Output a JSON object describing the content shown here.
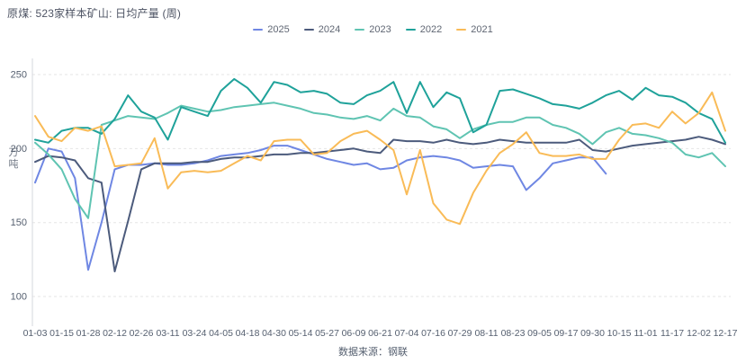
{
  "header": {
    "title": "原煤: 523家样本矿山: 日均产量 (周)"
  },
  "footer": {
    "source": "数据来源：钢联"
  },
  "theme": {
    "title_color": "#4e5464",
    "axis_text_color": "#566070",
    "grid_color": "#e6e6e6",
    "axis_line_color": "#d4d7dc",
    "background": "#ffffff"
  },
  "chart_data": {
    "type": "line",
    "title": "原煤: 523家样本矿山: 日均产量 (周)",
    "xlabel": "",
    "ylabel": "万吨",
    "ylim": [
      100,
      258
    ],
    "yticks": [
      100,
      150,
      200,
      250
    ],
    "grid": "horizontal-dashed",
    "legend_position": "top-center",
    "x_label_every": 2,
    "categories": [
      "01-03",
      "01-09",
      "01-15",
      "01-22",
      "01-28",
      "02-05",
      "02-12",
      "02-19",
      "02-26",
      "03-04",
      "03-11",
      "03-17",
      "03-24",
      "03-30",
      "04-05",
      "04-12",
      "04-18",
      "04-24",
      "04-30",
      "05-07",
      "05-14",
      "05-20",
      "05-27",
      "06-02",
      "06-09",
      "06-15",
      "06-21",
      "06-27",
      "07-04",
      "07-10",
      "07-16",
      "07-22",
      "07-29",
      "08-05",
      "08-11",
      "08-17",
      "08-23",
      "08-29",
      "09-05",
      "09-11",
      "09-17",
      "09-24",
      "09-30",
      "10-08",
      "10-15",
      "10-24",
      "11-01",
      "11-09",
      "11-17",
      "11-25",
      "12-02",
      "12-10",
      "12-17"
    ],
    "series": [
      {
        "name": "2025",
        "color": "#6f87e3",
        "values": [
          177,
          200,
          198,
          180,
          118,
          150,
          186,
          189,
          189,
          190,
          189,
          189,
          190,
          192,
          195,
          196,
          197,
          199,
          202,
          202,
          199,
          196,
          193,
          191,
          189,
          190,
          186,
          187,
          192,
          194,
          195,
          194,
          192,
          187,
          188,
          189,
          188,
          172,
          180,
          190,
          192,
          194,
          194,
          183,
          null,
          null,
          null,
          null,
          null,
          null,
          null,
          null,
          null
        ]
      },
      {
        "name": "2024",
        "color": "#4c5b7c",
        "values": [
          191,
          195,
          194,
          192,
          180,
          177,
          117,
          151,
          186,
          190,
          190,
          190,
          191,
          191,
          193,
          194,
          194,
          195,
          196,
          196,
          197,
          197,
          198,
          199,
          200,
          198,
          197,
          206,
          205,
          205,
          204,
          206,
          204,
          203,
          204,
          206,
          205,
          204,
          204,
          204,
          204,
          206,
          199,
          198,
          200,
          202,
          203,
          204,
          205,
          206,
          208,
          206,
          203
        ]
      },
      {
        "name": "2023",
        "color": "#5fc4b2",
        "values": [
          204,
          196,
          186,
          166,
          153,
          216,
          219,
          222,
          221,
          220,
          224,
          229,
          227,
          225,
          226,
          228,
          229,
          230,
          231,
          229,
          227,
          224,
          223,
          221,
          220,
          222,
          219,
          227,
          222,
          221,
          215,
          213,
          207,
          213,
          216,
          218,
          218,
          221,
          221,
          216,
          214,
          210,
          203,
          211,
          214,
          210,
          209,
          207,
          204,
          196,
          194,
          197,
          188
        ]
      },
      {
        "name": "2022",
        "color": "#1fa29a",
        "values": [
          206,
          204,
          212,
          214,
          214,
          210,
          220,
          236,
          225,
          221,
          206,
          228,
          225,
          222,
          239,
          247,
          241,
          231,
          245,
          243,
          238,
          239,
          237,
          231,
          230,
          236,
          239,
          245,
          224,
          245,
          228,
          238,
          234,
          211,
          216,
          239,
          240,
          237,
          234,
          230,
          229,
          227,
          231,
          236,
          239,
          233,
          241,
          236,
          235,
          231,
          224,
          220,
          204
        ]
      },
      {
        "name": "2021",
        "color": "#f9bb57",
        "values": [
          222,
          208,
          205,
          214,
          212,
          215,
          188,
          189,
          190,
          207,
          173,
          184,
          185,
          184,
          185,
          190,
          195,
          192,
          205,
          206,
          206,
          196,
          197,
          205,
          210,
          212,
          206,
          199,
          169,
          199,
          163,
          152,
          149,
          170,
          185,
          197,
          203,
          211,
          197,
          195,
          195,
          196,
          193,
          193,
          206,
          216,
          217,
          214,
          225,
          217,
          224,
          238,
          212
        ]
      }
    ]
  }
}
